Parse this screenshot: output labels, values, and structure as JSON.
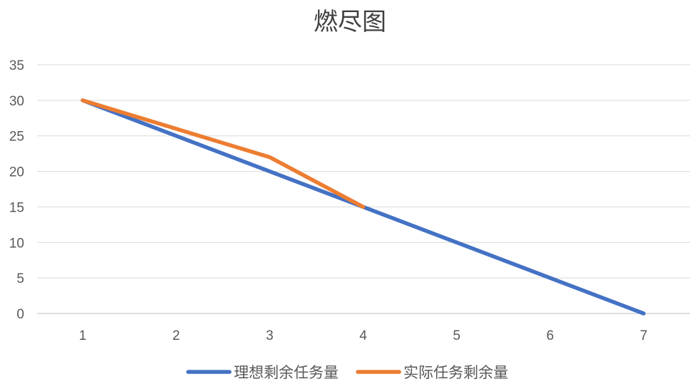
{
  "chart_data": {
    "type": "line",
    "title": "燃尽图",
    "xlabel": "",
    "ylabel": "",
    "x": [
      1,
      2,
      3,
      4,
      5,
      6,
      7
    ],
    "categories": [
      "1",
      "2",
      "3",
      "4",
      "5",
      "6",
      "7"
    ],
    "ylim": [
      0,
      35
    ],
    "yticks": [
      0,
      5,
      10,
      15,
      20,
      25,
      30,
      35
    ],
    "grid": true,
    "legend_position": "bottom",
    "series": [
      {
        "name": "理想剩余任务量",
        "color": "#4472C4",
        "x": [
          1,
          2,
          3,
          4,
          5,
          6,
          7
        ],
        "values": [
          30,
          25,
          20,
          15,
          10,
          5,
          0
        ]
      },
      {
        "name": "实际任务剩余量",
        "color": "#ED7D31",
        "x": [
          1,
          2,
          3,
          4
        ],
        "values": [
          30,
          26,
          22,
          15
        ]
      }
    ]
  }
}
